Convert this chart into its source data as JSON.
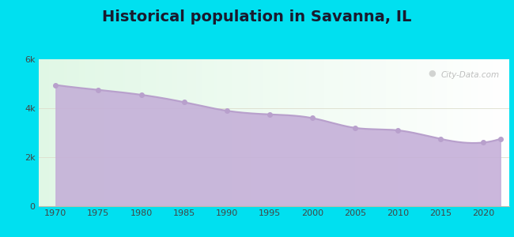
{
  "title": "Historical population in Savanna, IL",
  "title_fontsize": 14,
  "title_fontweight": "bold",
  "years": [
    1970,
    1975,
    1980,
    1985,
    1990,
    1995,
    2000,
    2005,
    2010,
    2015,
    2020,
    2022
  ],
  "population": [
    4950,
    4750,
    4550,
    4250,
    3900,
    3750,
    3600,
    3200,
    3100,
    2750,
    2600,
    2750
  ],
  "line_color": "#b8a0cc",
  "fill_color": "#c4aed8",
  "marker_color": "#b8a0cc",
  "background_outer": "#00e0f0",
  "xlim": [
    1968,
    2023
  ],
  "ylim": [
    0,
    6000
  ],
  "ytick_labels": [
    "0",
    "2k",
    "4k",
    "6k"
  ],
  "ytick_values": [
    0,
    2000,
    4000,
    6000
  ],
  "xtick_values": [
    1970,
    1975,
    1980,
    1985,
    1990,
    1995,
    2000,
    2005,
    2010,
    2015,
    2020
  ],
  "watermark_text": "City-Data.com",
  "figsize": [
    6.5,
    3.0
  ],
  "dpi": 100
}
